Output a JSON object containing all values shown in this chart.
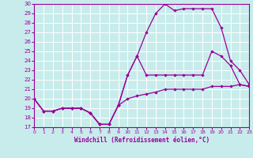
{
  "xlabel": "Windchill (Refroidissement éolien,°C)",
  "background_color": "#c8ecec",
  "grid_color": "#ffffff",
  "line_color": "#990099",
  "xmin": 0,
  "xmax": 23,
  "ymin": 17,
  "ymax": 30,
  "xticks": [
    0,
    1,
    2,
    3,
    4,
    5,
    6,
    7,
    8,
    9,
    10,
    11,
    12,
    13,
    14,
    15,
    16,
    17,
    18,
    19,
    20,
    21,
    22,
    23
  ],
  "yticks": [
    17,
    18,
    19,
    20,
    21,
    22,
    23,
    24,
    25,
    26,
    27,
    28,
    29,
    30
  ],
  "line1_x": [
    0,
    1,
    2,
    3,
    4,
    5,
    6,
    7,
    8,
    9,
    10,
    11,
    12,
    13,
    14,
    15,
    16,
    17,
    18,
    19,
    20,
    21,
    22,
    23
  ],
  "line1_y": [
    20.0,
    18.7,
    18.7,
    19.0,
    19.0,
    19.0,
    18.5,
    17.3,
    17.3,
    19.3,
    22.5,
    24.5,
    27.0,
    29.0,
    30.0,
    29.3,
    29.5,
    29.5,
    29.5,
    29.5,
    27.5,
    24.0,
    23.0,
    21.5
  ],
  "line2_x": [
    0,
    1,
    2,
    3,
    4,
    5,
    6,
    7,
    8,
    9,
    10,
    11,
    12,
    13,
    14,
    15,
    16,
    17,
    18,
    19,
    20,
    21,
    22,
    23
  ],
  "line2_y": [
    20.0,
    18.7,
    18.7,
    19.0,
    19.0,
    19.0,
    18.5,
    17.3,
    17.3,
    19.3,
    22.5,
    24.5,
    22.5,
    22.5,
    22.5,
    22.5,
    22.5,
    22.5,
    22.5,
    25.0,
    24.5,
    23.5,
    21.5,
    21.3
  ],
  "line3_x": [
    0,
    1,
    2,
    3,
    4,
    5,
    6,
    7,
    8,
    9,
    10,
    11,
    12,
    13,
    14,
    15,
    16,
    17,
    18,
    19,
    20,
    21,
    22,
    23
  ],
  "line3_y": [
    20.0,
    18.7,
    18.7,
    19.0,
    19.0,
    19.0,
    18.5,
    17.3,
    17.3,
    19.3,
    20.0,
    20.3,
    20.5,
    20.7,
    21.0,
    21.0,
    21.0,
    21.0,
    21.0,
    21.3,
    21.3,
    21.3,
    21.5,
    21.3
  ]
}
